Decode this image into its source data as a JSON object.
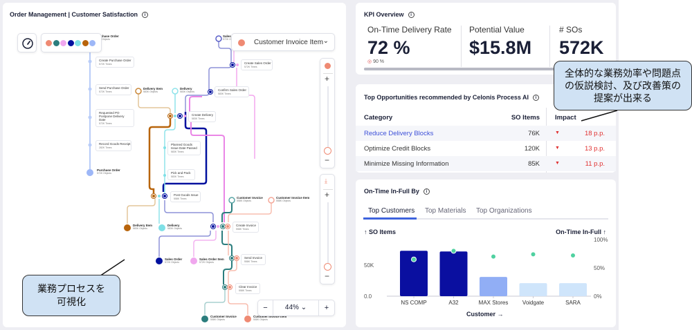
{
  "left_panel": {
    "title": "Order Management | Customer Satisfaction",
    "object_selector": "Customer Invoice Item",
    "zoom_level": "44%",
    "zoom_minus": "−",
    "zoom_plus": "+",
    "legend_colors": [
      "#ef8a73",
      "#2b7d7d",
      "#f0a7ee",
      "#00109e",
      "#7fe0e6",
      "#b8640b",
      "#9db7f7"
    ],
    "objects": [
      {
        "name": "Purchase Order",
        "count": "572K Objects"
      },
      {
        "name": "Sales Order",
        "count": "572K Objects"
      },
      {
        "name": "Delivery Item",
        "count": "583K Objects"
      },
      {
        "name": "Delivery",
        "count": "583K Objects"
      },
      {
        "name": "Purchase Order",
        "count": "572K Objects"
      },
      {
        "name": "Customer Invoice",
        "count": "558K Objects"
      },
      {
        "name": "Customer Invoice Item",
        "count": "558K Objects"
      },
      {
        "name": "Delivery Item",
        "count": "583K Objects"
      },
      {
        "name": "Delivery",
        "count": "583K Objects"
      },
      {
        "name": "Sales Order",
        "count": "572K Objects"
      },
      {
        "name": "Sales Order Item",
        "count": "572K Objects"
      },
      {
        "name": "Customer Invoice",
        "count": "558K Objects"
      },
      {
        "name": "Customer Invoice Item",
        "count": "558K Objects"
      }
    ],
    "activities": [
      {
        "name": "Create Purchase Order",
        "count": "572K Times"
      },
      {
        "name": "Send Purchase Order",
        "count": "572K Times"
      },
      {
        "name": "Requested PO Postpone Delivery Date",
        "count": "572K Times"
      },
      {
        "name": "Record Goods Receipt",
        "count": "282K Times"
      },
      {
        "name": "Create Sales Order",
        "count": "572K Times"
      },
      {
        "name": "Confirm Sales Order",
        "count": "583K Times"
      },
      {
        "name": "Create Delivery",
        "count": "583K Times"
      },
      {
        "name": "Planned Goods Issue Date Passed",
        "count": "583K Times"
      },
      {
        "name": "Pick and Pack",
        "count": "583K Times"
      },
      {
        "name": "Post Goods Issue",
        "count": "558K Times"
      },
      {
        "name": "Create Invoice",
        "count": "558K Times"
      },
      {
        "name": "Send Invoice",
        "count": "558K Times"
      },
      {
        "name": "Clear Invoice",
        "count": "558K Times"
      }
    ],
    "annotation": "業務プロセスを\n可視化"
  },
  "kpi": {
    "title": "KPI Overview",
    "metrics": [
      {
        "label": "On-Time Delivery Rate",
        "value": "72 %",
        "target": "90 %"
      },
      {
        "label": "Potential Value",
        "value": "$15.8M"
      },
      {
        "label": "# SOs",
        "value": "572K"
      }
    ],
    "progress": 0.8
  },
  "opportunities": {
    "title": "Top Opportunities recommended by Celonis Process AI",
    "columns": [
      "Category",
      "SO Items",
      "Impact"
    ],
    "rows": [
      {
        "category": "Reduce Delivery Blocks",
        "so_items": "76K",
        "impact": "18 p.p."
      },
      {
        "category": "Optimize Credit Blocks",
        "so_items": "120K",
        "impact": "13 p.p."
      },
      {
        "category": "Minimize Missing Information",
        "so_items": "85K",
        "impact": "11 p.p."
      }
    ],
    "annotation": "全体的な業務効率や問題点の仮説検討、及び改善策の提案が出来る"
  },
  "otif": {
    "title": "On-Time In-Full By",
    "tabs": [
      "Top Customers",
      "Top Materials",
      "Top Organizations"
    ],
    "active_tab": 0,
    "left_axis_label": "↑ SO Items",
    "right_axis_label": "On-Time In-Full ↑",
    "x_axis_label": "Customer →"
  },
  "chart_data": {
    "type": "bar",
    "categories": [
      "NS COMP",
      "A32",
      "MAX Stores",
      "Voidgate",
      "SARA"
    ],
    "series": [
      {
        "name": "SO Items",
        "axis": "left",
        "values": [
          73000,
          72000,
          31000,
          21000,
          21000
        ],
        "colors": [
          "#0a0fa0",
          "#0a0fa0",
          "#91aef5",
          "#cfe5fb",
          "#cfe5fb"
        ]
      },
      {
        "name": "On-Time In-Full",
        "axis": "right",
        "type": "scatter",
        "values": [
          0.65,
          0.8,
          0.7,
          0.74,
          0.72
        ],
        "color": "#4fd1a0"
      }
    ],
    "left_ticks": [
      "0.0",
      "50K"
    ],
    "right_ticks": [
      "0%",
      "50%",
      "100%"
    ],
    "ylim_left": [
      0,
      100000
    ],
    "ylim_right": [
      0,
      1
    ],
    "xlabel": "Customer →",
    "ylabel_left": "↑ SO Items",
    "ylabel_right": "On-Time In-Full ↑"
  }
}
